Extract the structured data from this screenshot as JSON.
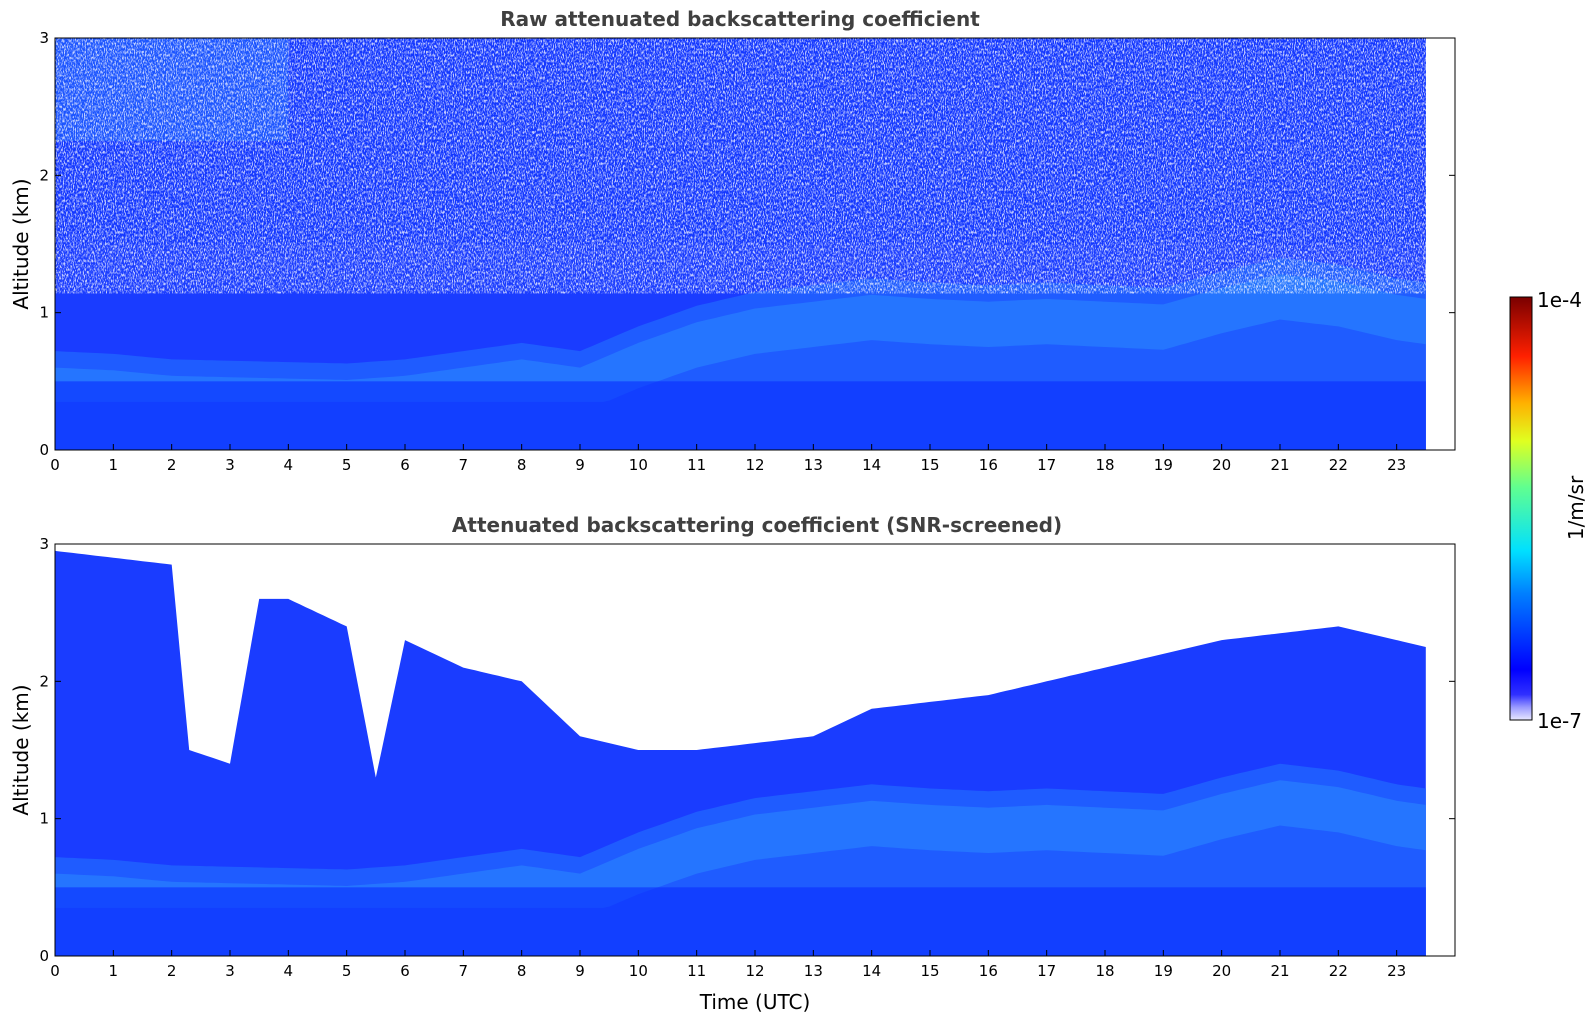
{
  "chart_data": [
    {
      "type": "heatmap",
      "title": "Raw attenuated backscattering coefficient",
      "xlabel": "",
      "ylabel": "Altitude (km)",
      "xlim": [
        0,
        24
      ],
      "ylim": [
        0,
        3
      ],
      "x_ticks": [
        "0",
        "1",
        "2",
        "3",
        "4",
        "5",
        "6",
        "7",
        "8",
        "9",
        "10",
        "11",
        "12",
        "13",
        "14",
        "15",
        "16",
        "17",
        "18",
        "19",
        "20",
        "21",
        "22",
        "23"
      ],
      "y_ticks": [
        "0",
        "1",
        "2",
        "3"
      ],
      "data_end_time": 23.5,
      "variant": "raw",
      "boundary_layer_top_km": [
        [
          0,
          0.72
        ],
        [
          1,
          0.7
        ],
        [
          2,
          0.66
        ],
        [
          3,
          0.65
        ],
        [
          4,
          0.64
        ],
        [
          5,
          0.63
        ],
        [
          6,
          0.66
        ],
        [
          7,
          0.72
        ],
        [
          8,
          0.78
        ],
        [
          9,
          0.72
        ],
        [
          10,
          0.9
        ],
        [
          11,
          1.05
        ],
        [
          12,
          1.15
        ],
        [
          13,
          1.2
        ],
        [
          14,
          1.25
        ],
        [
          15,
          1.22
        ],
        [
          16,
          1.2
        ],
        [
          17,
          1.22
        ],
        [
          18,
          1.2
        ],
        [
          19,
          1.18
        ],
        [
          20,
          1.3
        ],
        [
          21,
          1.4
        ],
        [
          22,
          1.35
        ],
        [
          23,
          1.25
        ],
        [
          23.5,
          1.22
        ]
      ]
    },
    {
      "type": "heatmap",
      "title": "Attenuated backscattering coefficient (SNR-screened)",
      "xlabel": "Time (UTC)",
      "ylabel": "Altitude (km)",
      "xlim": [
        0,
        24
      ],
      "ylim": [
        0,
        3
      ],
      "x_ticks": [
        "0",
        "1",
        "2",
        "3",
        "4",
        "5",
        "6",
        "7",
        "8",
        "9",
        "10",
        "11",
        "12",
        "13",
        "14",
        "15",
        "16",
        "17",
        "18",
        "19",
        "20",
        "21",
        "22",
        "23"
      ],
      "y_ticks": [
        "0",
        "1",
        "2",
        "3"
      ],
      "data_end_time": 23.5,
      "variant": "screened",
      "snr_cutoff_km": [
        [
          0,
          2.95
        ],
        [
          1,
          2.9
        ],
        [
          2,
          2.85
        ],
        [
          2.3,
          1.5
        ],
        [
          3,
          1.4
        ],
        [
          3.5,
          2.6
        ],
        [
          4,
          2.6
        ],
        [
          5,
          2.4
        ],
        [
          5.5,
          1.3
        ],
        [
          6,
          2.3
        ],
        [
          7,
          2.1
        ],
        [
          8,
          2.0
        ],
        [
          9,
          1.6
        ],
        [
          10,
          1.5
        ],
        [
          11,
          1.5
        ],
        [
          12,
          1.55
        ],
        [
          13,
          1.6
        ],
        [
          14,
          1.8
        ],
        [
          15,
          1.85
        ],
        [
          16,
          1.9
        ],
        [
          17,
          2.0
        ],
        [
          18,
          2.1
        ],
        [
          19,
          2.2
        ],
        [
          20,
          2.3
        ],
        [
          21,
          2.35
        ],
        [
          22,
          2.4
        ],
        [
          23,
          2.3
        ],
        [
          23.5,
          2.25
        ]
      ],
      "boundary_layer_top_km": [
        [
          0,
          0.72
        ],
        [
          1,
          0.7
        ],
        [
          2,
          0.66
        ],
        [
          3,
          0.65
        ],
        [
          4,
          0.64
        ],
        [
          5,
          0.63
        ],
        [
          6,
          0.66
        ],
        [
          7,
          0.72
        ],
        [
          8,
          0.78
        ],
        [
          9,
          0.72
        ],
        [
          10,
          0.9
        ],
        [
          11,
          1.05
        ],
        [
          12,
          1.15
        ],
        [
          13,
          1.2
        ],
        [
          14,
          1.25
        ],
        [
          15,
          1.22
        ],
        [
          16,
          1.2
        ],
        [
          17,
          1.22
        ],
        [
          18,
          1.2
        ],
        [
          19,
          1.18
        ],
        [
          20,
          1.3
        ],
        [
          21,
          1.4
        ],
        [
          22,
          1.35
        ],
        [
          23,
          1.25
        ],
        [
          23.5,
          1.22
        ]
      ]
    }
  ],
  "colorbar": {
    "label": "1/m/sr",
    "max_label": "1e-4",
    "min_label": "1e-7",
    "colormap": "jet",
    "colors": {
      "deep_blue": "#0022ee",
      "blue": "#1a3cff",
      "light_blue": "#2a8bff",
      "cyan": "#22d4f0",
      "background": "#ffffff"
    }
  }
}
